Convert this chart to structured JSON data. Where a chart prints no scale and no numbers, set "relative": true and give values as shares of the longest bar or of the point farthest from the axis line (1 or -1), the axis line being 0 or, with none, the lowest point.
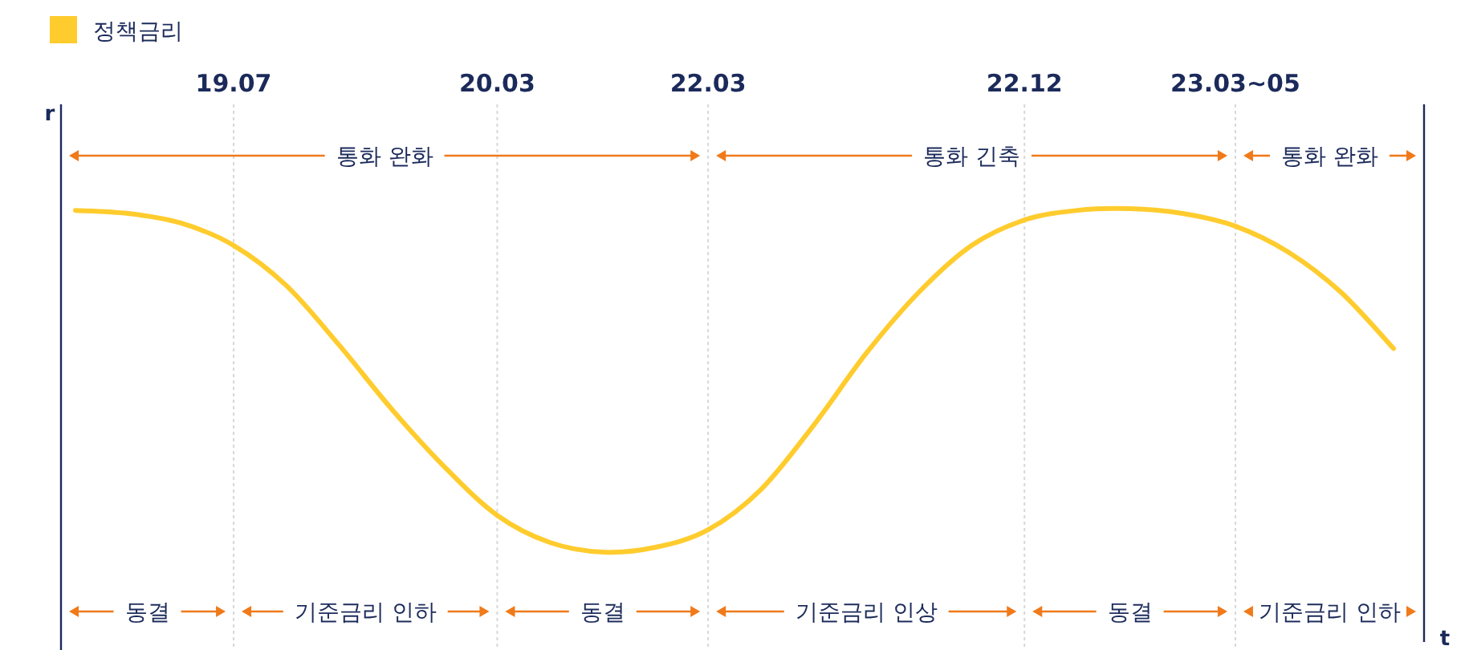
{
  "chart_data": {
    "type": "line",
    "relative": true,
    "xlabel": "t",
    "ylabel": "r",
    "categories": [
      null,
      null,
      null,
      "19.07",
      null,
      null,
      null,
      null,
      "20.03",
      null,
      null,
      null,
      "22.03",
      null,
      null,
      null,
      null,
      null,
      "22.12",
      null,
      null,
      null,
      "23.03~05",
      null,
      null,
      null
    ],
    "series": [
      {
        "name": "정책금리",
        "color": "#ffcc2e",
        "values": [
          0.995,
          0.986,
          0.958,
          0.893,
          0.776,
          0.603,
          0.416,
          0.248,
          0.107,
          0.028,
          0,
          0.014,
          0.065,
          0.182,
          0.369,
          0.579,
          0.757,
          0.893,
          0.967,
          0.995,
          1,
          0.986,
          0.949,
          0.874,
          0.757,
          0.593
        ]
      }
    ],
    "grid": "x",
    "legend": "top left",
    "marker": "none",
    "line_style": "solid",
    "annotations": [
      "통화 완화",
      "통화 긴축",
      "통화 완화",
      "동결",
      "기준금리 인하",
      "동결",
      "기준금리 인상",
      "동결",
      "기준금리 인하"
    ]
  }
}
